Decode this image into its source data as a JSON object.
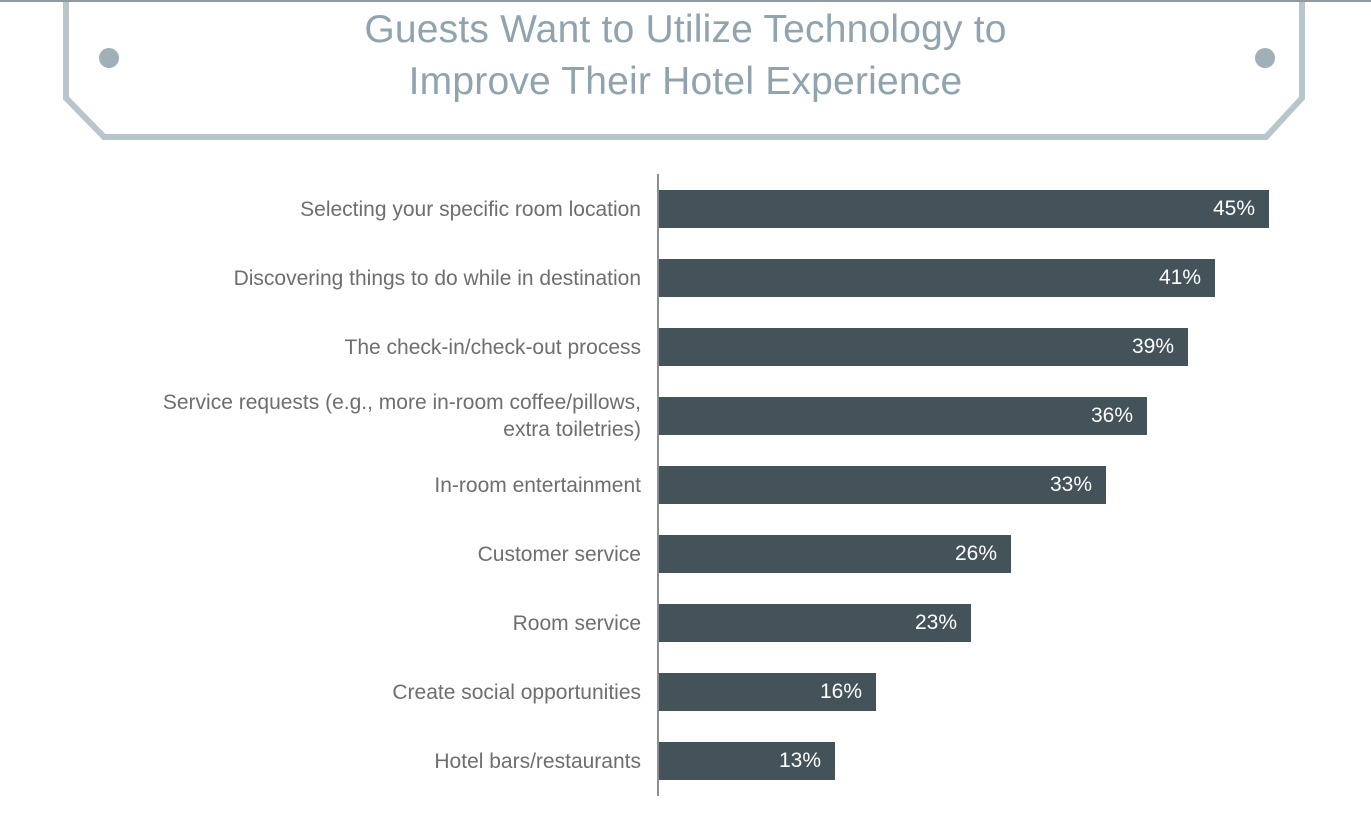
{
  "chart_data": {
    "type": "bar",
    "orientation": "horizontal",
    "title_lines": [
      "Guests Want to Utilize Technology to",
      "Improve Their Hotel Experience"
    ],
    "categories": [
      [
        "Selecting your specific room location"
      ],
      [
        "Discovering things to do while in destination"
      ],
      [
        "The check-in/check-out process"
      ],
      [
        "Service requests (e.g., more in-room coffee/pillows,",
        "extra toiletries)"
      ],
      [
        "In-room entertainment"
      ],
      [
        "Customer service"
      ],
      [
        "Room service"
      ],
      [
        "Create social opportunities"
      ],
      [
        "Hotel bars/restaurants"
      ]
    ],
    "values": [
      45,
      41,
      39,
      36,
      33,
      26,
      23,
      16,
      13
    ],
    "value_labels": [
      "45%",
      "41%",
      "39%",
      "36%",
      "33%",
      "26%",
      "23%",
      "16%",
      "13%"
    ],
    "xlim": [
      0,
      45
    ],
    "unit": "%",
    "grid": false,
    "legend": "none"
  },
  "colors": {
    "bar": "#44525a",
    "title": "#8fa4ae",
    "frame": "#b8c6cc",
    "label": "#6d6e70"
  }
}
